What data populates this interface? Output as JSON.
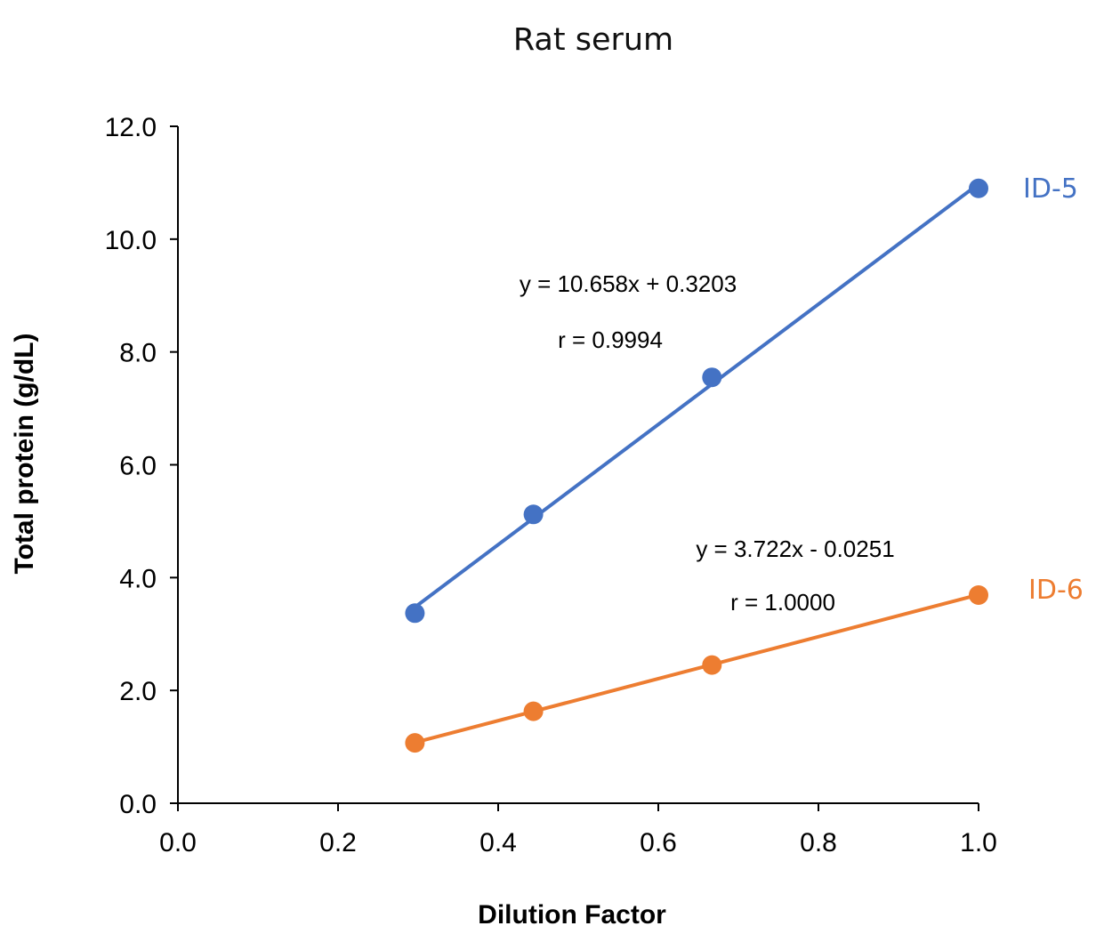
{
  "chart_data": {
    "type": "scatter",
    "title": "Rat serum",
    "xlabel": "Dilution Factor",
    "ylabel": "Total protein (g/dL)",
    "xlim": [
      0.0,
      1.0
    ],
    "ylim": [
      0.0,
      12.0
    ],
    "x_ticks": [
      "0.0",
      "0.2",
      "0.4",
      "0.6",
      "0.8",
      "1.0"
    ],
    "y_ticks": [
      "0.0",
      "2.0",
      "4.0",
      "6.0",
      "8.0",
      "10.0",
      "12.0"
    ],
    "grid": false,
    "series": [
      {
        "name": "ID-5",
        "color": "#4472C4",
        "x": [
          0.296,
          0.444,
          0.667,
          1.0
        ],
        "y": [
          3.37,
          5.12,
          7.55,
          10.9
        ],
        "trendline": {
          "slope": 10.658,
          "intercept": 0.3203
        },
        "equation": "y = 10.658x + 0.3203",
        "r_label": "r = 0.9994"
      },
      {
        "name": "ID-6",
        "color": "#ED7D31",
        "x": [
          0.296,
          0.444,
          0.667,
          1.0
        ],
        "y": [
          1.07,
          1.63,
          2.45,
          3.69
        ],
        "trendline": {
          "slope": 3.722,
          "intercept": -0.0251
        },
        "equation": "y = 3.722x - 0.0251",
        "r_label": "r = 1.0000"
      }
    ]
  }
}
